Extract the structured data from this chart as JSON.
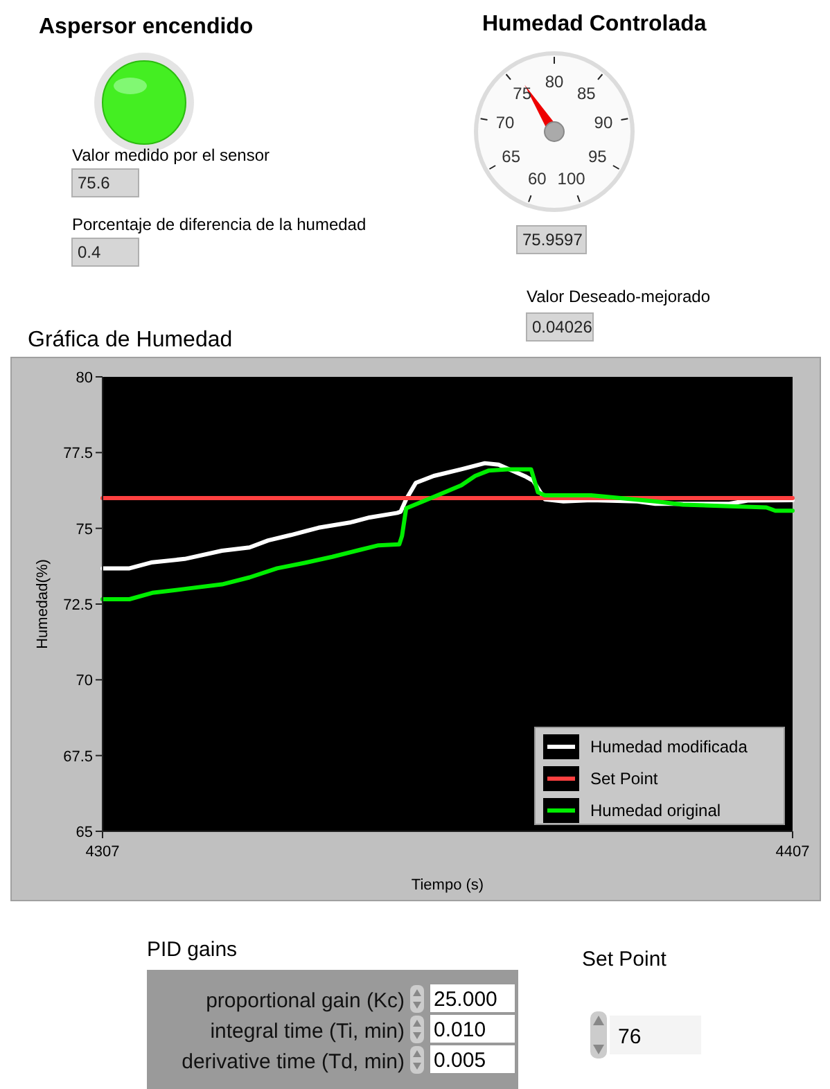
{
  "chart_data": [
    {
      "type": "other",
      "title": "Aspersor encendido",
      "annotations": [
        "Valor medido por el sensor",
        "75.6",
        "Porcentaje de diferencia de la humedad",
        "0.4"
      ]
    },
    {
      "type": "other",
      "title": "Humedad Controlada",
      "annotations": [
        "60",
        "65",
        "70",
        "75",
        "80",
        "85",
        "90",
        "95",
        "100",
        "75.9597",
        "Valor Deseado-mejorado",
        "0.04026"
      ]
    },
    {
      "type": "line",
      "title": "Gráfica de Humedad",
      "xlabel": "Tiempo (s)",
      "ylabel": "Humedad(%)",
      "xlim": [
        4307,
        4407
      ],
      "xticks": [
        4307,
        4407
      ],
      "ylim": [
        65,
        80
      ],
      "yticks": [
        65,
        67.5,
        70,
        72.5,
        75,
        77.5,
        80
      ],
      "grid": false,
      "legend": "bottom right",
      "series": [
        {
          "name": "Humedad modificada",
          "color": "#ffffff",
          "x": [
            4307,
            4310.9,
            4314.2,
            4318.9,
            4324.3,
            4328.3,
            4331,
            4334.3,
            4338.3,
            4343,
            4345.7,
            4349.7,
            4350.2,
            4351,
            4352.4,
            4355,
            4359,
            4362.4,
            4364.4,
            4368.4,
            4369.4,
            4371.1,
            4373.8,
            4377.8,
            4384.5,
            4387.1,
            4397.8,
            4400.5,
            4407
          ],
          "values": [
            73.68,
            73.68,
            73.88,
            73.99,
            74.26,
            74.37,
            74.6,
            74.78,
            75.02,
            75.2,
            75.36,
            75.51,
            75.55,
            75.96,
            76.5,
            76.73,
            76.95,
            77.15,
            77.1,
            76.7,
            76.57,
            75.96,
            75.89,
            75.93,
            75.89,
            75.81,
            75.81,
            75.92,
            75.93
          ]
        },
        {
          "name": "Set Point",
          "color": "#ff4040",
          "x": [
            4307,
            4407
          ],
          "values": [
            76,
            76
          ]
        },
        {
          "name": "Humedad original",
          "color": "#00ee00",
          "x": [
            4307,
            4310.9,
            4314.2,
            4318.9,
            4324.3,
            4328.3,
            4332.3,
            4336.3,
            4340.3,
            4344.3,
            4347.0,
            4350.0,
            4350.4,
            4351,
            4355,
            4359,
            4361,
            4363,
            4365.7,
            4369.1,
            4370.1,
            4371.1,
            4377.8,
            4387.1,
            4391.1,
            4403.2,
            4404.5,
            4407
          ],
          "values": [
            72.66,
            72.66,
            72.87,
            73.0,
            73.15,
            73.38,
            73.68,
            73.86,
            74.06,
            74.29,
            74.44,
            74.47,
            74.75,
            75.66,
            76.04,
            76.42,
            76.73,
            76.91,
            76.95,
            76.95,
            76.19,
            76.09,
            76.09,
            75.89,
            75.78,
            75.69,
            75.58,
            75.58
          ]
        }
      ]
    },
    {
      "type": "other",
      "title": "PID gains",
      "annotations": [
        "proportional gain (Kc)",
        "25.000",
        "integral time (Ti, min)",
        "0.010",
        "derivative time (Td, min)",
        "0.005"
      ]
    },
    {
      "type": "other",
      "title": "Set Point",
      "annotations": [
        "76"
      ]
    }
  ]
}
